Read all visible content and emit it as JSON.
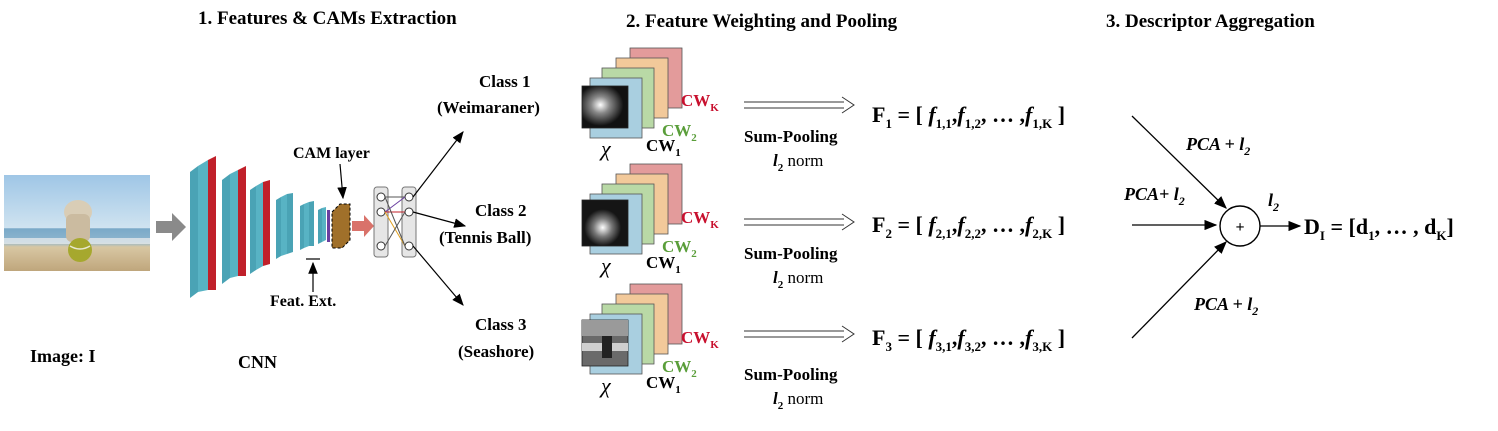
{
  "headings": {
    "step1": "1. Features & CAMs Extraction",
    "step2": "2. Feature Weighting and Pooling",
    "step3": "3. Descriptor Aggregation"
  },
  "labels": {
    "image": "Image: I",
    "cnn": "CNN",
    "cam_layer": "CAM layer",
    "feat_ext": "Feat. Ext."
  },
  "classes": [
    {
      "line1": "Class 1",
      "line2": "(Weimaraner)",
      "idx": "1"
    },
    {
      "line1": "Class 2",
      "line2": "(Tennis Ball)",
      "idx": "2"
    },
    {
      "line1": "Class 3",
      "line2": "(Seashore)",
      "idx": "3"
    }
  ],
  "stack": {
    "chi": "χ",
    "cw": "CW",
    "sub_1": "1",
    "sub_2": "2",
    "sub_k": "K",
    "cw_k_color": "#c8102e",
    "cw_2_color": "#5a9e3a"
  },
  "pooling": {
    "line1": "Sum-Pooling",
    "norm_l": "l",
    "norm_sub": "2",
    "norm_word": " norm"
  },
  "formula": {
    "F": "F",
    "eq": " = [ ",
    "f": "f",
    "comma": ",",
    "ellipsis": " … ,",
    "close": " ]",
    "k": "K"
  },
  "aggregation": {
    "pca_l2": "PCA + l",
    "pca_l2_mid": "PCA+ l",
    "sub": "2",
    "l2": "l",
    "plus": "+",
    "D": "D",
    "D_sub": "I",
    "D_eq": " = [d",
    "D_mid": ", … , d",
    "D_close": "]",
    "d1": "1",
    "dk": "K"
  },
  "colors": {
    "cnn_teal": "#4aa3b5",
    "cnn_red": "#c0202a",
    "cam_brown": "#a0702a",
    "arrow_grey": "#8a8a8a",
    "sheet_red": "#e39b9b",
    "sheet_orange": "#f2c99a",
    "sheet_green": "#b9d9a6",
    "sheet_blue": "#a9cfe0"
  }
}
